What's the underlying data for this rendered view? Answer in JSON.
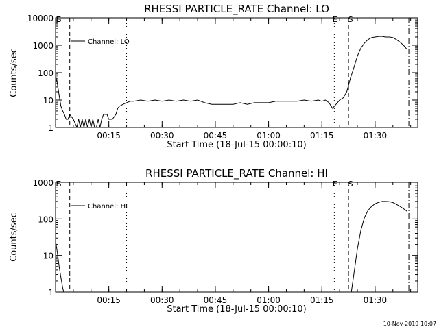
{
  "footer_timestamp": "10-Nov-2019 10:07",
  "chart_data": [
    {
      "type": "line",
      "title": "RHESSI PARTICLE_RATE Channel: LO",
      "xlabel": "Start Time (18-Jul-15 00:00:10)",
      "ylabel": "Counts/sec",
      "yscale": "log",
      "ylim": [
        1,
        10000
      ],
      "xlim_minutes": [
        0,
        102
      ],
      "x_tick_labels": [
        "00:15",
        "00:30",
        "00:45",
        "01:00",
        "01:15",
        "01:30"
      ],
      "y_tick_labels": [
        "1",
        "10",
        "100",
        "1000",
        "10000"
      ],
      "legend": "Channel: LO",
      "markers": [
        "E",
        "S",
        "E",
        "S"
      ],
      "series": [
        {
          "name": "Channel: LO",
          "x_minutes": [
            0,
            0.5,
            1,
            1.5,
            2,
            2.5,
            3,
            3.5,
            4,
            5,
            6,
            6.5,
            7,
            7.5,
            8,
            8.5,
            9,
            9.5,
            10,
            10.5,
            11,
            11.5,
            12,
            12.5,
            13,
            13.5,
            14,
            14.5,
            15,
            16,
            17,
            17.5,
            18,
            19,
            20,
            21,
            22,
            24,
            26,
            28,
            30,
            32,
            34,
            36,
            38,
            40,
            42,
            44,
            46,
            48,
            50,
            52,
            54,
            56,
            58,
            60,
            62,
            64,
            66,
            68,
            70,
            72,
            74,
            75,
            76,
            77,
            78,
            79,
            80,
            81,
            82,
            83,
            84,
            85,
            86,
            87,
            88,
            89,
            90,
            91,
            92,
            93,
            94,
            95,
            96,
            97,
            98,
            99
          ],
          "y": [
            80,
            40,
            15,
            6,
            4,
            3,
            2,
            2,
            3,
            2,
            1,
            2,
            1,
            2,
            1,
            2,
            1,
            2,
            1,
            2,
            1,
            1,
            2,
            1,
            2,
            3,
            3,
            3,
            2,
            2,
            3,
            5,
            6,
            7,
            8,
            9,
            9,
            10,
            9,
            10,
            9,
            10,
            9,
            10,
            9,
            10,
            8,
            7,
            7,
            7,
            7,
            8,
            7,
            8,
            8,
            8,
            9,
            9,
            9,
            9,
            10,
            9,
            10,
            9,
            10,
            8,
            5,
            7,
            10,
            12,
            20,
            60,
            150,
            400,
            800,
            1200,
            1600,
            1900,
            2000,
            2100,
            2100,
            2000,
            2000,
            1900,
            1600,
            1300,
            1000,
            700
          ]
        }
      ],
      "vlines_minutes": [
        {
          "x": 4,
          "style": "dashed"
        },
        {
          "x": 20,
          "style": "dotted"
        },
        {
          "x": 78.5,
          "style": "dotted"
        },
        {
          "x": 82.5,
          "style": "dashed"
        },
        {
          "x": 99.5,
          "style": "dashdot"
        }
      ]
    },
    {
      "type": "line",
      "title": "RHESSI PARTICLE_RATE Channel: HI",
      "xlabel": "Start Time (18-Jul-15 00:00:10)",
      "ylabel": "Counts/sec",
      "yscale": "log",
      "ylim": [
        1,
        1000
      ],
      "xlim_minutes": [
        0,
        102
      ],
      "x_tick_labels": [
        "00:15",
        "00:30",
        "00:45",
        "01:00",
        "01:15",
        "01:30"
      ],
      "y_tick_labels": [
        "1",
        "10",
        "100",
        "1000"
      ],
      "legend": "Channel: HI",
      "markers": [
        "E",
        "S",
        "E",
        "S"
      ],
      "series": [
        {
          "name": "Channel: HI",
          "x_minutes": [
            0,
            0.5,
            1,
            1.5,
            2,
            2.3,
            83.3,
            84,
            85,
            86,
            87,
            88,
            89,
            90,
            91,
            92,
            93,
            94,
            95,
            96,
            97,
            98,
            99
          ],
          "y": [
            25,
            12,
            5,
            2.5,
            1.3,
            1,
            1,
            3,
            15,
            50,
            110,
            170,
            220,
            260,
            285,
            300,
            300,
            295,
            280,
            250,
            220,
            190,
            160
          ]
        }
      ],
      "vlines_minutes": [
        {
          "x": 4,
          "style": "dashed"
        },
        {
          "x": 20,
          "style": "dotted"
        },
        {
          "x": 78.5,
          "style": "dotted"
        },
        {
          "x": 82.5,
          "style": "dashed"
        },
        {
          "x": 99.5,
          "style": "dashdot"
        }
      ]
    }
  ]
}
